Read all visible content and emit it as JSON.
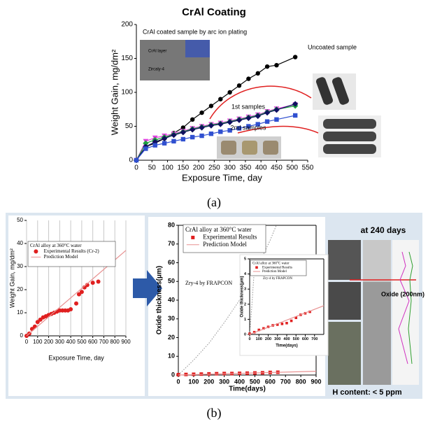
{
  "figure": {
    "label_a": "(a)",
    "label_b": "(b)",
    "panel_texts": [
      "at 240 days",
      "Oxide (200nm)",
      "H content: < 5 ppm"
    ]
  },
  "chart_data": [
    {
      "type": "line",
      "title": "CrAl Coating",
      "xlabel": "Exposure Time, day",
      "ylabel": "Weight Gain, mg/dm²",
      "xlim": [
        0,
        550
      ],
      "xticks": [
        0,
        50,
        100,
        150,
        200,
        250,
        300,
        350,
        400,
        450,
        500,
        550
      ],
      "ylim": [
        0,
        200
      ],
      "yticks": [
        0,
        50,
        100,
        150,
        200
      ],
      "grid": false,
      "annotations": [
        "CrAl coated sample by arc ion plating",
        "Uncoated sample",
        "1st samples",
        "2nd samples",
        "CrAl layer",
        "Zircaly-4"
      ],
      "series": [
        {
          "color": "#000000",
          "marker": "circle",
          "line_style": "solid",
          "x": [
            0,
            30,
            60,
            90,
            120,
            150,
            180,
            210,
            240,
            270,
            300,
            330,
            360,
            390,
            420,
            450,
            510
          ],
          "values": [
            0,
            20,
            25,
            32,
            40,
            48,
            60,
            70,
            80,
            90,
            100,
            110,
            120,
            128,
            138,
            140,
            152
          ]
        },
        {
          "color": "#e040e0",
          "marker": "triangle-down",
          "line_style": "solid",
          "x": [
            0,
            30,
            60,
            90,
            120,
            150,
            180,
            210,
            240,
            270,
            300,
            330,
            360,
            390,
            420,
            450,
            510
          ],
          "values": [
            0,
            28,
            33,
            36,
            39,
            43,
            47,
            50,
            53,
            55,
            58,
            61,
            64,
            67,
            72,
            76,
            82
          ]
        },
        {
          "color": "#20a040",
          "marker": "diamond",
          "line_style": "solid",
          "x": [
            0,
            30,
            60,
            90,
            120,
            150,
            180,
            210,
            240,
            270,
            300,
            330,
            360,
            390,
            420,
            450,
            510
          ],
          "values": [
            0,
            25,
            30,
            34,
            38,
            42,
            46,
            49,
            52,
            54,
            57,
            60,
            63,
            66,
            71,
            75,
            80
          ]
        },
        {
          "color": "#101060",
          "marker": "diamond",
          "line_style": "solid",
          "x": [
            0,
            30,
            60,
            90,
            120,
            150,
            180,
            210,
            240,
            270,
            300,
            330,
            360,
            390,
            420,
            450,
            510
          ],
          "values": [
            0,
            20,
            27,
            32,
            37,
            41,
            45,
            48,
            51,
            53,
            56,
            59,
            62,
            65,
            70,
            74,
            83
          ]
        },
        {
          "color": "#3050d0",
          "marker": "square",
          "line_style": "solid",
          "x": [
            0,
            30,
            60,
            90,
            120,
            150,
            180,
            210,
            240,
            270,
            300,
            330,
            360,
            390,
            420,
            450,
            510
          ],
          "values": [
            0,
            17,
            22,
            25,
            28,
            31,
            34,
            36,
            39,
            42,
            44,
            47,
            50,
            53,
            57,
            60,
            66
          ]
        }
      ]
    },
    {
      "type": "line",
      "xlabel": "Exposure Time, day",
      "ylabel": "Weight Gain, mg/dm²",
      "xlim": [
        0,
        900
      ],
      "xticks": [
        0,
        100,
        200,
        300,
        400,
        500,
        600,
        700,
        800,
        900
      ],
      "ylim": [
        0,
        50
      ],
      "yticks": [
        0,
        10,
        20,
        30,
        40,
        50
      ],
      "grid": true,
      "legend_title": "CrAl alloy at 360°C water",
      "series": [
        {
          "name": "Experimental Results (Cr-2)",
          "color": "#e02020",
          "marker": "circle",
          "line_style": "none",
          "x": [
            0,
            25,
            50,
            75,
            100,
            125,
            150,
            175,
            200,
            225,
            250,
            275,
            300,
            325,
            350,
            375,
            400,
            450,
            475,
            500,
            525,
            550,
            600,
            650
          ],
          "values": [
            0,
            1,
            3,
            4,
            6,
            7,
            8,
            8.5,
            9,
            9.5,
            10,
            10.5,
            11,
            11,
            11,
            11,
            11.5,
            14,
            18,
            19,
            21,
            22,
            23,
            23.5
          ]
        },
        {
          "name": "Prediction Model",
          "color": "#e89090",
          "marker": "none",
          "line_style": "solid",
          "x": [
            0,
            900
          ],
          "values": [
            0,
            37
          ]
        }
      ]
    },
    {
      "type": "line",
      "xlabel": "Time(days)",
      "ylabel": "Oxide thickness(μm)",
      "xlim": [
        0,
        900
      ],
      "xticks": [
        0,
        100,
        200,
        300,
        400,
        500,
        600,
        700,
        800,
        900
      ],
      "ylim": [
        0,
        80
      ],
      "yticks": [
        0,
        10,
        20,
        30,
        40,
        50,
        60,
        70,
        80
      ],
      "grid": false,
      "legend_title": "CrAl alloy at 360°C water",
      "annotations": [
        "Zry-4 by FRAPCON"
      ],
      "series": [
        {
          "name": "Experimental Results",
          "color": "#e02020",
          "marker": "square",
          "line_style": "none",
          "x": [
            0,
            50,
            100,
            150,
            200,
            250,
            300,
            350,
            400,
            450,
            500,
            550,
            600,
            650
          ],
          "values": [
            0.2,
            0.3,
            0.4,
            0.5,
            0.6,
            0.7,
            0.8,
            0.8,
            0.9,
            1,
            1.1,
            1.2,
            1.4,
            1.5
          ]
        },
        {
          "name": "Prediction Model",
          "color": "#e89090",
          "marker": "none",
          "line_style": "solid",
          "x": [
            0,
            900
          ],
          "values": [
            0,
            2
          ]
        },
        {
          "color": "#909090",
          "marker": "none",
          "line_style": "dotted",
          "x": [
            0,
            100,
            200,
            300,
            400,
            500,
            600,
            640
          ],
          "values": [
            0,
            8,
            17,
            28,
            40,
            55,
            72,
            80
          ]
        }
      ]
    },
    {
      "type": "line",
      "xlabel": "Time(days)",
      "ylabel": "Oxide thickness(μm)",
      "xlim": [
        0,
        800
      ],
      "xticks": [
        0,
        100,
        200,
        300,
        400,
        500,
        600,
        700
      ],
      "ylim": [
        0,
        5
      ],
      "yticks": [
        0,
        1,
        2,
        3,
        4,
        5
      ],
      "grid": false,
      "legend_title": "CrAl alloy at 360°C water",
      "annotations": [
        "Zry-4 by FRAPCON"
      ],
      "series": [
        {
          "name": "Experimental Results",
          "color": "#e02020",
          "marker": "square",
          "line_style": "none",
          "x": [
            0,
            50,
            100,
            150,
            200,
            250,
            300,
            350,
            400,
            450,
            500,
            550,
            600,
            650
          ],
          "values": [
            0.05,
            0.15,
            0.3,
            0.4,
            0.5,
            0.6,
            0.65,
            0.7,
            0.75,
            0.9,
            1.1,
            1.3,
            1.4,
            1.5
          ]
        },
        {
          "name": "Prediction Model",
          "color": "#e89090",
          "marker": "none",
          "line_style": "solid",
          "x": [
            0,
            800
          ],
          "values": [
            0,
            1.9
          ]
        },
        {
          "color": "#909090",
          "marker": "none",
          "line_style": "dotted",
          "x": [
            0,
            20,
            40,
            60
          ],
          "values": [
            0,
            1.6,
            3.4,
            5
          ]
        }
      ]
    }
  ]
}
